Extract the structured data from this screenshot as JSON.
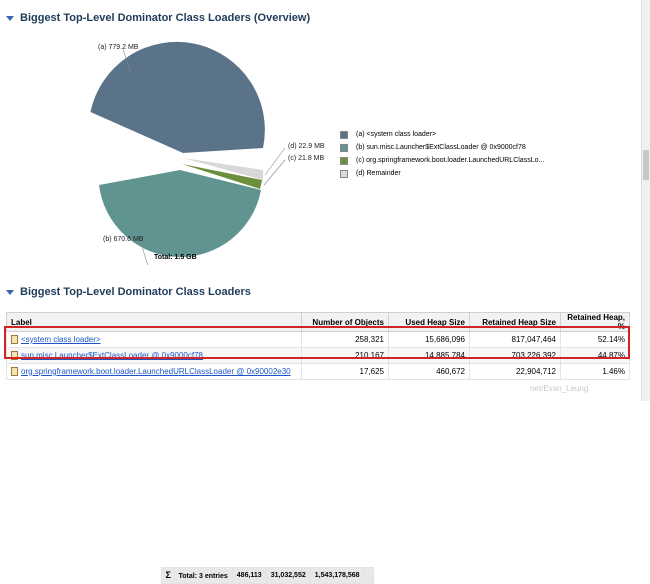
{
  "overview": {
    "title": "Biggest Top-Level Dominator Class Loaders (Overview)",
    "total_label": "Total: 1.5 GB",
    "slice_labels": {
      "a": "(a)  779.2 MB",
      "b": "(b)  670.6 MB",
      "c": "(c)  21.8 MB",
      "d": "(d)  22.9 MB"
    },
    "legend": [
      {
        "text": "(a)  <system class loader>",
        "color": "#5b7389"
      },
      {
        "text": "(b)  sun.misc.Launcher$ExtClassLoader @ 0x9000cf78",
        "color": "#5f9490"
      },
      {
        "text": "(c)  org.springframework.boot.loader.LaunchedURLClassLo...",
        "color": "#6b8f3c"
      },
      {
        "text": "(d)  Remainder",
        "color": "#d8d8d8"
      }
    ]
  },
  "chart_data": {
    "type": "pie",
    "title": "",
    "slices": [
      {
        "label": "(a)",
        "value": 779.2,
        "unit": "MB",
        "color": "#5b7389"
      },
      {
        "label": "(b)",
        "value": 670.6,
        "unit": "MB",
        "color": "#5f9490"
      },
      {
        "label": "(c)",
        "value": 21.8,
        "unit": "MB",
        "color": "#6b8f3c"
      },
      {
        "label": "(d)",
        "value": 22.9,
        "unit": "MB",
        "color": "#d8d8d8"
      }
    ]
  },
  "table": {
    "title": "Biggest Top-Level Dominator Class Loaders",
    "headers": {
      "label": "Label",
      "objects": "Number of Objects",
      "used": "Used Heap Size",
      "retained": "Retained Heap Size",
      "retained_pct": "Retained Heap, %"
    },
    "rows": [
      {
        "label": "<system class loader>",
        "objects": "258,321",
        "used": "15,686,096",
        "retained": "817,047,464",
        "pct": "52.14%"
      },
      {
        "label": "sun.misc.Launcher$ExtClassLoader @ 0x9000cf78",
        "objects": "210,167",
        "used": "14,885,784",
        "retained": "703,226,392",
        "pct": "44.87%"
      },
      {
        "label": "org.springframework.boot.loader.LaunchedURLClassLoader @ 0x90002e30",
        "objects": "17,625",
        "used": "460,672",
        "retained": "22,904,712",
        "pct": "1.46%"
      }
    ],
    "total": {
      "label": "Total: 3 entries",
      "objects": "486,113",
      "used": "31,032,552",
      "retained": "1,543,178,568",
      "pct": ""
    }
  },
  "watermark": "net/Evan_Leung"
}
